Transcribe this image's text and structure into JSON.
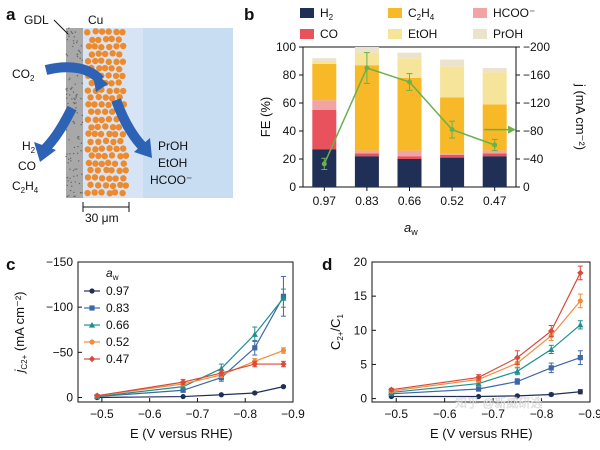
{
  "panels": {
    "a": "a",
    "b": "b",
    "c": "c",
    "d": "d"
  },
  "schematic": {
    "gdl_label": "GDL",
    "cu_label": "Cu",
    "co2_label": "CO",
    "co2_sub": "2",
    "left_products": [
      {
        "main": "H",
        "sub": "2"
      },
      {
        "main": "CO",
        "sub": ""
      },
      {
        "main": "C",
        "sub": "2",
        "rest": "H",
        "sub2": "4"
      }
    ],
    "right_products": [
      "PrOH",
      "EtOH",
      "HCOO⁻"
    ],
    "scale_bar": "30 μm",
    "colors": {
      "gdl": "#a8a8a8",
      "cu": "#ee8a2c",
      "electrolyte": "#c8dcf2",
      "arrow": "#2e62b4"
    }
  },
  "chart_data": [
    {
      "id": "b",
      "type": "bar",
      "subtype": "stacked bar + line (dual axis)",
      "categories": [
        "0.97",
        "0.83",
        "0.66",
        "0.52",
        "0.47"
      ],
      "xlabel": "a",
      "xlabel_sub": "w",
      "ylabel": "FE (%)",
      "ylim": [
        0,
        100
      ],
      "yticks": [
        "0",
        "20",
        "40",
        "60",
        "80",
        "100"
      ],
      "y2label": "j (mA cm⁻²)",
      "y2lim": [
        0,
        -200
      ],
      "y2ticks": [
        "0",
        "−40",
        "−80",
        "−120",
        "−160",
        "−200"
      ],
      "legend": [
        {
          "name": "H2",
          "label": "H",
          "sub": "2",
          "color": "#1f2f56"
        },
        {
          "name": "C2H4",
          "label": "C",
          "sub": "2",
          "rest": "H",
          "sub2": "4",
          "color": "#f7b928"
        },
        {
          "name": "HCOO-",
          "label": "HCOO⁻",
          "sub": "",
          "color": "#f2a3a3"
        },
        {
          "name": "CO",
          "label": "CO",
          "sub": "",
          "color": "#e8525c"
        },
        {
          "name": "EtOH",
          "label": "EtOH",
          "sub": "",
          "color": "#f6e49a"
        },
        {
          "name": "PrOH",
          "label": "PrOH",
          "sub": "",
          "color": "#ece3cd"
        }
      ],
      "series": [
        {
          "name": "H2",
          "values": [
            27,
            22,
            20,
            21,
            22
          ]
        },
        {
          "name": "CO",
          "values": [
            28,
            2,
            2,
            2,
            2
          ]
        },
        {
          "name": "HCOO-",
          "values": [
            7,
            2,
            4,
            1,
            2
          ]
        },
        {
          "name": "C2H4",
          "values": [
            26,
            61,
            52,
            40,
            33
          ]
        },
        {
          "name": "EtOH",
          "values": [
            2,
            9,
            14,
            22,
            23
          ]
        },
        {
          "name": "PrOH",
          "values": [
            2,
            4,
            4,
            5,
            3
          ]
        }
      ],
      "line": {
        "name": "j",
        "color": "#6ab04c",
        "values": [
          -33,
          -170,
          -150,
          -82,
          -60
        ],
        "errors": [
          8,
          22,
          12,
          12,
          8
        ]
      },
      "line_extra": {
        "from_category": "0.47",
        "value": -82
      },
      "annotation": "→"
    },
    {
      "id": "c",
      "type": "line",
      "xlabel": "E (V versus RHE)",
      "ylabel": "j",
      "ylabel_sub": "C2+",
      "ylabel_rest": " (mA cm⁻²)",
      "xlim": [
        -0.45,
        -0.9
      ],
      "ylim": [
        5,
        -150
      ],
      "xticks": [
        "−0.5",
        "−0.6",
        "−0.7",
        "−0.8",
        "−0.9"
      ],
      "yticks": [
        "0",
        "−50",
        "−100",
        "−150"
      ],
      "legend_title": "a",
      "legend_title_sub": "w",
      "series": [
        {
          "name": "0.97",
          "color": "#1f2f56",
          "marker": "circle",
          "x": [
            -0.49,
            -0.67,
            -0.75,
            -0.82,
            -0.88
          ],
          "y": [
            0,
            -1,
            -3,
            -5,
            -12
          ],
          "err": [
            0,
            0,
            0,
            1,
            1
          ]
        },
        {
          "name": "0.83",
          "color": "#3f67a8",
          "marker": "square",
          "x": [
            -0.49,
            -0.67,
            -0.75,
            -0.82,
            -0.88
          ],
          "y": [
            -1,
            -8,
            -22,
            -55,
            -112
          ],
          "err": [
            1,
            2,
            4,
            8,
            22
          ]
        },
        {
          "name": "0.66",
          "color": "#1f8f8f",
          "marker": "triangle",
          "x": [
            -0.49,
            -0.67,
            -0.75,
            -0.82,
            -0.88
          ],
          "y": [
            -1,
            -12,
            -32,
            -70,
            -110
          ],
          "err": [
            1,
            3,
            5,
            8,
            10
          ]
        },
        {
          "name": "0.52",
          "color": "#f08c3e",
          "marker": "circle",
          "x": [
            -0.49,
            -0.67,
            -0.75,
            -0.82,
            -0.88
          ],
          "y": [
            -2,
            -15,
            -25,
            -40,
            -52
          ],
          "err": [
            1,
            2,
            3,
            3,
            3
          ]
        },
        {
          "name": "0.47",
          "color": "#d94a3a",
          "marker": "diamond",
          "x": [
            -0.49,
            -0.67,
            -0.75,
            -0.82,
            -0.88
          ],
          "y": [
            -2,
            -17,
            -27,
            -37,
            -37
          ],
          "err": [
            1,
            3,
            3,
            3,
            3
          ]
        }
      ]
    },
    {
      "id": "d",
      "type": "line",
      "xlabel": "E (V versus RHE)",
      "ylabel": "C",
      "ylabel_sub": "2+",
      "ylabel_rest": "/C",
      "ylabel_sub2": "1",
      "xlim": [
        -0.45,
        -0.9
      ],
      "ylim": [
        -0.5,
        20
      ],
      "xticks": [
        "−0.5",
        "−0.6",
        "−0.7",
        "−0.8",
        "−0.9"
      ],
      "yticks": [
        "0",
        "5",
        "10",
        "15",
        "20"
      ],
      "series": [
        {
          "name": "0.97",
          "color": "#1f2f56",
          "marker": "circle",
          "x": [
            -0.49,
            -0.67,
            -0.75,
            -0.82,
            -0.88
          ],
          "y": [
            0.3,
            0.3,
            0.4,
            0.6,
            1.0
          ],
          "err": [
            0.1,
            0.1,
            0.1,
            0.2,
            0.3
          ]
        },
        {
          "name": "0.83",
          "color": "#3f67a8",
          "marker": "square",
          "x": [
            -0.49,
            -0.67,
            -0.75,
            -0.82,
            -0.88
          ],
          "y": [
            0.7,
            1.4,
            2.5,
            4.5,
            6.0
          ],
          "err": [
            0.2,
            0.3,
            0.4,
            0.7,
            1.0
          ]
        },
        {
          "name": "0.66",
          "color": "#1f8f8f",
          "marker": "triangle",
          "x": [
            -0.49,
            -0.67,
            -0.75,
            -0.82,
            -0.88
          ],
          "y": [
            0.9,
            2.2,
            4.0,
            7.2,
            10.8
          ],
          "err": [
            0.2,
            0.3,
            0.5,
            0.6,
            0.6
          ]
        },
        {
          "name": "0.52",
          "color": "#f08c3e",
          "marker": "circle",
          "x": [
            -0.49,
            -0.67,
            -0.75,
            -0.82,
            -0.88
          ],
          "y": [
            1.1,
            2.8,
            5.2,
            9.2,
            14.3
          ],
          "err": [
            0.2,
            0.4,
            0.6,
            0.7,
            1.0
          ]
        },
        {
          "name": "0.47",
          "color": "#d94a3a",
          "marker": "diamond",
          "x": [
            -0.49,
            -0.67,
            -0.75,
            -0.82,
            -0.88
          ],
          "y": [
            1.3,
            3.1,
            6.0,
            9.9,
            18.4
          ],
          "err": [
            0.2,
            0.4,
            1.0,
            0.8,
            1.0
          ]
        }
      ]
    }
  ],
  "watermark": "知乎 @新威研选"
}
